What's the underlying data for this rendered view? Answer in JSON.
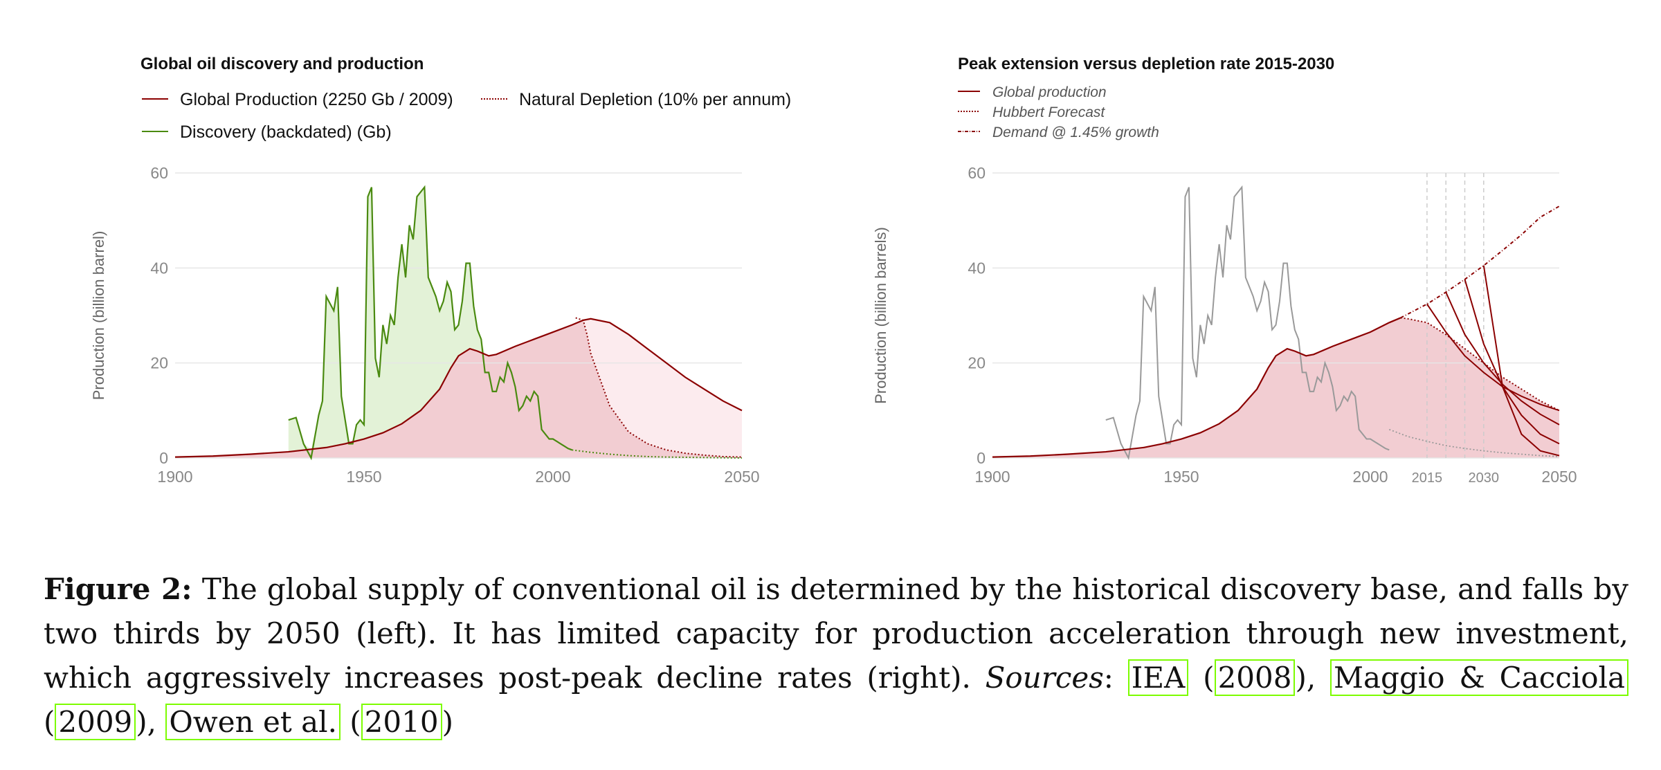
{
  "colors": {
    "production": "#8b0000",
    "discovery": "#4a8a10",
    "production_fill": "#f2cdd2",
    "extension_fill": "#fcebee",
    "discovery_fill": "#e3f2d7",
    "grey_discovery": "#999999",
    "grid": "#e6e6e6"
  },
  "caption": {
    "label": "Figure 2:",
    "text": " The global supply of conventional oil is determined by the historical discovery base, and falls by two thirds by 2050 (left).  It has limited capacity for production acceleration through new investment, which aggressively increases post-peak decline rates (right). ",
    "sources_label": "Sources",
    "sep1": ": ",
    "cite1": "IEA",
    "p1o": " (",
    "year1": "2008",
    "p1c": "), ",
    "cite2": "Maggio & Cacciola",
    "p2o": " (",
    "year2": "2009",
    "p2c": "), ",
    "cite3": "Owen et al.",
    "p3o": " (",
    "year3": "2010",
    "p3c": ")"
  },
  "chart_data": [
    {
      "type": "area",
      "title": "Global oil discovery and production",
      "ylabel": "Production (billion barrel)",
      "xlabel": "",
      "xlim": [
        1900,
        2050
      ],
      "ylim": [
        0,
        60
      ],
      "xticks": [
        1900,
        1950,
        2000,
        2050
      ],
      "yticks": [
        0,
        20,
        40,
        60
      ],
      "grid": true,
      "legend_position": "top-left",
      "legend": [
        "Global Production (2250 Gb / 2009)",
        "Natural Depletion (10% per annum)",
        "Discovery (backdated) (Gb)"
      ],
      "series": [
        {
          "name": "Global Production (2250 Gb / 2009)",
          "style": "solid",
          "x": [
            1900,
            1910,
            1920,
            1930,
            1940,
            1945,
            1950,
            1955,
            1960,
            1965,
            1970,
            1973,
            1975,
            1978,
            1980,
            1983,
            1985,
            1990,
            1995,
            2000,
            2005,
            2008,
            2010,
            2015,
            2020,
            2025,
            2030,
            2035,
            2040,
            2045,
            2050
          ],
          "values": [
            0.2,
            0.4,
            0.8,
            1.3,
            2.2,
            3.0,
            4.0,
            5.3,
            7.2,
            10.0,
            14.5,
            19.0,
            21.5,
            23.0,
            22.5,
            21.5,
            21.8,
            23.5,
            25.0,
            26.5,
            28.0,
            29.0,
            29.3,
            28.5,
            26.0,
            23.0,
            20.0,
            17.0,
            14.5,
            12.0,
            10.0
          ]
        },
        {
          "name": "Natural Depletion (10% per annum)",
          "style": "dotted",
          "x": [
            2006,
            2008,
            2009,
            2010,
            2015,
            2020,
            2025,
            2030,
            2035,
            2040,
            2045,
            2050
          ],
          "values": [
            29.5,
            29.0,
            26.0,
            22.0,
            11.0,
            5.5,
            3.0,
            1.7,
            1.0,
            0.6,
            0.3,
            0.2
          ]
        },
        {
          "name": "Discovery (backdated) (Gb)",
          "style": "solid",
          "x": [
            1930,
            1932,
            1934,
            1936,
            1938,
            1939,
            1940,
            1942,
            1943,
            1944,
            1945,
            1946,
            1947,
            1948,
            1949,
            1950,
            1951,
            1952,
            1953,
            1954,
            1955,
            1956,
            1957,
            1958,
            1959,
            1960,
            1961,
            1962,
            1963,
            1964,
            1965,
            1966,
            1967,
            1968,
            1969,
            1970,
            1971,
            1972,
            1973,
            1974,
            1975,
            1976,
            1977,
            1978,
            1979,
            1980,
            1981,
            1982,
            1983,
            1984,
            1985,
            1986,
            1987,
            1988,
            1989,
            1990,
            1991,
            1992,
            1993,
            1994,
            1995,
            1996,
            1997,
            1998,
            1999,
            2000,
            2001,
            2002,
            2003,
            2004,
            2005,
            2010,
            2015,
            2020,
            2025,
            2030,
            2035,
            2040,
            2045,
            2050
          ],
          "values": [
            8,
            8.5,
            3,
            0,
            9,
            12,
            34,
            31,
            36,
            13,
            8,
            3,
            3,
            7,
            8,
            7,
            55,
            57,
            21,
            17,
            28,
            24,
            30,
            28,
            38,
            45,
            38,
            49,
            46,
            55,
            56,
            57,
            38,
            36,
            34,
            31,
            33,
            37,
            35,
            27,
            28,
            33,
            41,
            41,
            32,
            27,
            25,
            18,
            18,
            14,
            14,
            17,
            16,
            20,
            18,
            15,
            10,
            11,
            13,
            12,
            14,
            13,
            6,
            5,
            4,
            4,
            3.5,
            3,
            2.5,
            2.0,
            1.7,
            1.2,
            0.8,
            0.5,
            0.3,
            0.2,
            0.15,
            0.1,
            0.05,
            0.0
          ]
        }
      ]
    },
    {
      "type": "area",
      "title": "Peak extension versus depletion rate 2015-2030",
      "ylabel": "Production (billion barrels)",
      "xlabel": "",
      "xlim": [
        1900,
        2050
      ],
      "ylim": [
        0,
        60
      ],
      "xticks": [
        1900,
        1950,
        2000,
        2015,
        2030,
        2050
      ],
      "yticks": [
        0,
        20,
        40,
        60
      ],
      "vlines": [
        2015,
        2020,
        2025,
        2030
      ],
      "grid": true,
      "legend_position": "top-left",
      "legend": [
        "Global production",
        "Hubbert Forecast",
        "Demand @ 1.45% growth"
      ],
      "series": [
        {
          "name": "Global production",
          "style": "solid",
          "x": [
            1900,
            1910,
            1920,
            1930,
            1940,
            1945,
            1950,
            1955,
            1960,
            1965,
            1970,
            1973,
            1975,
            1978,
            1980,
            1983,
            1985,
            1990,
            1995,
            2000,
            2005,
            2008
          ],
          "values": [
            0.2,
            0.4,
            0.8,
            1.3,
            2.2,
            3.0,
            4.0,
            5.3,
            7.2,
            10.0,
            14.5,
            19.0,
            21.5,
            23.0,
            22.5,
            21.5,
            21.8,
            23.5,
            25.0,
            26.5,
            28.5,
            29.5
          ]
        },
        {
          "name": "Hubbert Forecast",
          "style": "dotted",
          "x": [
            2008,
            2010,
            2015,
            2020,
            2025,
            2030,
            2035,
            2040,
            2045,
            2050
          ],
          "values": [
            29.5,
            29.3,
            28.5,
            26.0,
            23.0,
            20.0,
            17.0,
            14.5,
            12.0,
            10.0
          ]
        },
        {
          "name": "Demand @ 1.45% growth",
          "style": "dash-dot",
          "x": [
            2008,
            2015,
            2020,
            2025,
            2030,
            2035,
            2040,
            2045,
            2050
          ],
          "values": [
            29.5,
            32.4,
            34.9,
            37.6,
            40.5,
            43.7,
            47.0,
            50.7,
            53.0
          ]
        },
        {
          "name": "",
          "style": "solid",
          "x": [
            2015,
            2020,
            2025,
            2030,
            2035,
            2040,
            2045,
            2050
          ],
          "values": [
            32.4,
            26.5,
            21.5,
            18.0,
            15.0,
            13.0,
            11.3,
            10.0
          ]
        },
        {
          "name": "",
          "style": "solid",
          "x": [
            2020,
            2025,
            2030,
            2035,
            2040,
            2045,
            2050
          ],
          "values": [
            34.9,
            26.0,
            20.0,
            15.5,
            12.0,
            9.2,
            7.0
          ]
        },
        {
          "name": "",
          "style": "solid",
          "x": [
            2025,
            2030,
            2035,
            2040,
            2045,
            2050
          ],
          "values": [
            37.6,
            24.0,
            15.0,
            9.0,
            5.0,
            3.0
          ]
        },
        {
          "name": "",
          "style": "solid",
          "x": [
            2030,
            2035,
            2040,
            2045,
            2050
          ],
          "values": [
            40.5,
            15.0,
            5.0,
            1.5,
            0.5
          ]
        },
        {
          "name": "",
          "style": "solid-grey",
          "x": [
            1930,
            1932,
            1934,
            1936,
            1938,
            1939,
            1940,
            1942,
            1943,
            1944,
            1945,
            1946,
            1947,
            1948,
            1949,
            1950,
            1951,
            1952,
            1953,
            1954,
            1955,
            1956,
            1957,
            1958,
            1959,
            1960,
            1961,
            1962,
            1963,
            1964,
            1965,
            1966,
            1967,
            1968,
            1969,
            1970,
            1971,
            1972,
            1973,
            1974,
            1975,
            1976,
            1977,
            1978,
            1979,
            1980,
            1981,
            1982,
            1983,
            1984,
            1985,
            1986,
            1987,
            1988,
            1989,
            1990,
            1991,
            1992,
            1993,
            1994,
            1995,
            1996,
            1997,
            1998,
            1999,
            2000,
            2001,
            2002,
            2003,
            2004,
            2005
          ],
          "values": [
            8,
            8.5,
            3,
            0,
            9,
            12,
            34,
            31,
            36,
            13,
            8,
            3,
            3,
            7,
            8,
            7,
            55,
            57,
            21,
            17,
            28,
            24,
            30,
            28,
            38,
            45,
            38,
            49,
            46,
            55,
            56,
            57,
            38,
            36,
            34,
            31,
            33,
            37,
            35,
            27,
            28,
            33,
            41,
            41,
            32,
            27,
            25,
            18,
            18,
            14,
            14,
            17,
            16,
            20,
            18,
            15,
            10,
            11,
            13,
            12,
            14,
            13,
            6,
            5,
            4,
            4,
            3.5,
            3,
            2.5,
            2.0,
            1.7
          ]
        },
        {
          "name": "",
          "style": "dotted",
          "x": [
            2005,
            2010,
            2015,
            2020,
            2025,
            2030,
            2035,
            2040,
            2045,
            2050
          ],
          "values": [
            6,
            4.5,
            3.5,
            2.6,
            2.0,
            1.5,
            1.1,
            0.8,
            0.5,
            0.3
          ]
        }
      ]
    }
  ]
}
